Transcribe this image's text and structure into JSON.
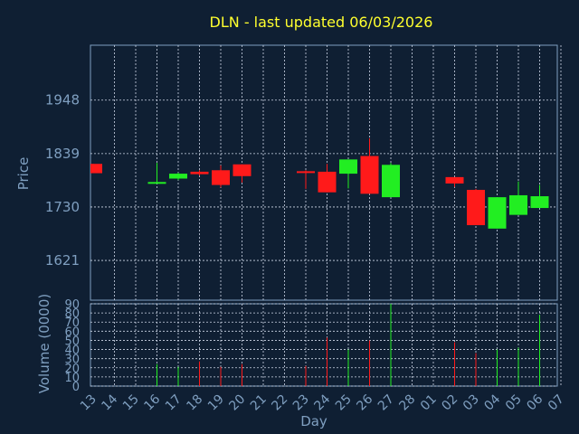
{
  "chart_data": [
    {
      "type": "candlestick",
      "title": "DLN - last updated 06/03/2026",
      "ylabel": "Price",
      "ylim": [
        1540,
        2060
      ],
      "yticks": [
        "1948",
        "1839",
        "1730",
        "1621"
      ],
      "grid": true,
      "colors": {
        "up": "#22ee22",
        "down": "#ff1a1a",
        "background": "#0f1f33",
        "grid": "#cfd8e8",
        "text": "#7f9fc0",
        "title": "#ffff2e"
      },
      "candles": [
        {
          "day": "13",
          "open": 1818,
          "close": 1799,
          "high": 1818,
          "low": 1799
        },
        {
          "day": "16",
          "open": 1778,
          "close": 1781,
          "high": 1820,
          "low": 1778
        },
        {
          "day": "17",
          "open": 1788,
          "close": 1798,
          "high": 1800,
          "low": 1785
        },
        {
          "day": "18",
          "open": 1802,
          "close": 1797,
          "high": 1805,
          "low": 1794
        },
        {
          "day": "19",
          "open": 1805,
          "close": 1775,
          "high": 1815,
          "low": 1770
        },
        {
          "day": "20",
          "open": 1817,
          "close": 1793,
          "high": 1817,
          "low": 1780
        },
        {
          "day": "23",
          "open": 1803,
          "close": 1801,
          "high": 1805,
          "low": 1767
        },
        {
          "day": "24",
          "open": 1802,
          "close": 1760,
          "high": 1818,
          "low": 1760
        },
        {
          "day": "25",
          "open": 1798,
          "close": 1827,
          "high": 1827,
          "low": 1768
        },
        {
          "day": "26",
          "open": 1834,
          "close": 1757,
          "high": 1870,
          "low": 1757
        },
        {
          "day": "27",
          "open": 1750,
          "close": 1816,
          "high": 1820,
          "low": 1750
        },
        {
          "day": "02",
          "open": 1791,
          "close": 1778,
          "high": 1791,
          "low": 1771
        },
        {
          "day": "03",
          "open": 1765,
          "close": 1693,
          "high": 1767,
          "low": 1693
        },
        {
          "day": "04",
          "open": 1686,
          "close": 1750,
          "high": 1750,
          "low": 1686
        },
        {
          "day": "05",
          "open": 1714,
          "close": 1754,
          "high": 1782,
          "low": 1714
        },
        {
          "day": "06",
          "open": 1728,
          "close": 1752,
          "high": 1775,
          "low": 1728
        }
      ]
    },
    {
      "type": "bar",
      "ylabel": "Volume (0000)",
      "xlabel": "Day",
      "ylim": [
        0,
        90
      ],
      "yticks": [
        "90",
        "80",
        "70",
        "60",
        "50",
        "40",
        "30",
        "20",
        "10",
        "0"
      ],
      "x_tick_labels": [
        "13",
        "14",
        "15",
        "16",
        "17",
        "18",
        "19",
        "20",
        "21",
        "22",
        "23",
        "24",
        "25",
        "26",
        "27",
        "28",
        "01",
        "02",
        "03",
        "04",
        "05",
        "06",
        "07"
      ],
      "bars": [
        {
          "day": "16",
          "value": 24,
          "direction": "up"
        },
        {
          "day": "17",
          "value": 21,
          "direction": "up"
        },
        {
          "day": "18",
          "value": 27,
          "direction": "down"
        },
        {
          "day": "19",
          "value": 21,
          "direction": "down"
        },
        {
          "day": "20",
          "value": 24,
          "direction": "down"
        },
        {
          "day": "23",
          "value": 22,
          "direction": "down"
        },
        {
          "day": "24",
          "value": 53,
          "direction": "down"
        },
        {
          "day": "25",
          "value": 40,
          "direction": "up"
        },
        {
          "day": "26",
          "value": 50,
          "direction": "down"
        },
        {
          "day": "27",
          "value": 90,
          "direction": "up"
        },
        {
          "day": "02",
          "value": 48,
          "direction": "down"
        },
        {
          "day": "03",
          "value": 36,
          "direction": "down"
        },
        {
          "day": "04",
          "value": 40,
          "direction": "up"
        },
        {
          "day": "05",
          "value": 42,
          "direction": "up"
        },
        {
          "day": "06",
          "value": 78,
          "direction": "up"
        }
      ]
    }
  ]
}
